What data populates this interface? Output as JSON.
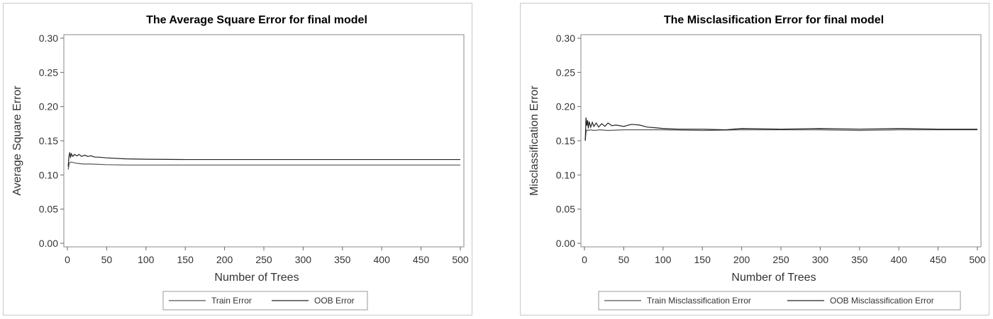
{
  "chart_data": [
    {
      "type": "line",
      "title": "The Average Square Error for final model",
      "xlabel": "Number of Trees",
      "ylabel": "Average Square Error",
      "xlim": [
        0,
        500
      ],
      "ylim": [
        0,
        0.3
      ],
      "xticks": [
        "0",
        "50",
        "100",
        "150",
        "200",
        "250",
        "300",
        "350",
        "400",
        "450",
        "500"
      ],
      "yticks": [
        "0.00",
        "0.05",
        "0.10",
        "0.15",
        "0.20",
        "0.25",
        "0.30"
      ],
      "legend_position": "bottom",
      "grid": false,
      "series": [
        {
          "name": "Train Error",
          "color": "#555555",
          "x": [
            1,
            2,
            3,
            5,
            8,
            12,
            20,
            30,
            50,
            75,
            100,
            150,
            200,
            300,
            400,
            500
          ],
          "y": [
            0.108,
            0.115,
            0.118,
            0.119,
            0.118,
            0.117,
            0.116,
            0.116,
            0.115,
            0.1145,
            0.1145,
            0.1145,
            0.1145,
            0.1145,
            0.1145,
            0.1145
          ]
        },
        {
          "name": "OOB Error",
          "color": "#222222",
          "x": [
            1,
            2,
            3,
            4,
            5,
            7,
            9,
            12,
            15,
            18,
            22,
            26,
            30,
            35,
            40,
            50,
            75,
            100,
            150,
            200,
            300,
            400,
            500
          ],
          "y": [
            0.112,
            0.127,
            0.133,
            0.125,
            0.131,
            0.127,
            0.13,
            0.128,
            0.13,
            0.127,
            0.129,
            0.127,
            0.128,
            0.126,
            0.126,
            0.125,
            0.1235,
            0.123,
            0.1225,
            0.1225,
            0.1225,
            0.1225,
            0.1225
          ]
        }
      ]
    },
    {
      "type": "line",
      "title": "The Misclasification Error for final model",
      "xlabel": "Number of Trees",
      "ylabel": "Misclassification Error",
      "xlim": [
        0,
        500
      ],
      "ylim": [
        0,
        0.3
      ],
      "xticks": [
        "0",
        "50",
        "100",
        "150",
        "200",
        "250",
        "300",
        "350",
        "400",
        "450",
        "500"
      ],
      "yticks": [
        "0.00",
        "0.05",
        "0.10",
        "0.15",
        "0.20",
        "0.25",
        "0.30"
      ],
      "legend_position": "bottom",
      "grid": false,
      "series": [
        {
          "name": "Train Misclassification Error",
          "color": "#555555",
          "x": [
            1,
            2,
            3,
            5,
            8,
            12,
            20,
            30,
            50,
            75,
            100,
            150,
            200,
            250,
            300,
            350,
            400,
            450,
            500
          ],
          "y": [
            0.15,
            0.162,
            0.166,
            0.165,
            0.166,
            0.165,
            0.166,
            0.165,
            0.166,
            0.166,
            0.166,
            0.165,
            0.166,
            0.166,
            0.166,
            0.165,
            0.166,
            0.166,
            0.166
          ]
        },
        {
          "name": "OOB Misclassification Error",
          "color": "#222222",
          "x": [
            1,
            2,
            3,
            4,
            5,
            6,
            8,
            10,
            12,
            15,
            18,
            22,
            26,
            30,
            35,
            40,
            50,
            60,
            70,
            80,
            90,
            100,
            120,
            150,
            180,
            200,
            250,
            300,
            350,
            400,
            450,
            500
          ],
          "y": [
            0.15,
            0.184,
            0.172,
            0.18,
            0.168,
            0.178,
            0.17,
            0.177,
            0.171,
            0.176,
            0.17,
            0.175,
            0.171,
            0.176,
            0.172,
            0.173,
            0.171,
            0.174,
            0.173,
            0.17,
            0.169,
            0.168,
            0.167,
            0.167,
            0.166,
            0.168,
            0.167,
            0.168,
            0.167,
            0.168,
            0.167,
            0.167
          ]
        }
      ]
    }
  ]
}
